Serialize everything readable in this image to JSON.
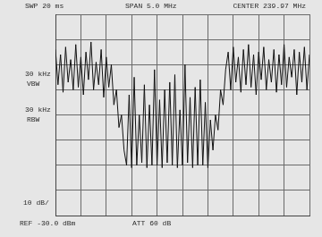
{
  "chart_data": {
    "type": "line",
    "annotations": [
      "SWP 20 ms",
      "SPAN 5.0 MHz",
      "CENTER 239.97 MHz",
      "30 kHz",
      "VBW",
      "30 kHz",
      "RBW",
      "10 dB/",
      "REF -30.0 dBm",
      "ATT 60 dB"
    ],
    "x": [
      237.47,
      237.52,
      237.57,
      237.62,
      237.67,
      237.72,
      237.77,
      237.82,
      237.87,
      237.92,
      237.97,
      238.02,
      238.07,
      238.12,
      238.17,
      238.22,
      238.27,
      238.32,
      238.37,
      238.42,
      238.47,
      238.52,
      238.57,
      238.62,
      238.67,
      238.72,
      238.77,
      238.82,
      238.87,
      238.92,
      238.97,
      239.02,
      239.07,
      239.12,
      239.17,
      239.22,
      239.27,
      239.32,
      239.37,
      239.42,
      239.47,
      239.52,
      239.57,
      239.62,
      239.67,
      239.72,
      239.77,
      239.82,
      239.87,
      239.92,
      239.97,
      240.02,
      240.07,
      240.12,
      240.17,
      240.22,
      240.27,
      240.32,
      240.37,
      240.42,
      240.47,
      240.52,
      240.57,
      240.62,
      240.67,
      240.72,
      240.77,
      240.82,
      240.87,
      240.92,
      240.97,
      241.02,
      241.07,
      241.12,
      241.17,
      241.22,
      241.27,
      241.32,
      241.37,
      241.42,
      241.47,
      241.52,
      241.57,
      241.62,
      241.67,
      241.72,
      241.77,
      241.82,
      241.87,
      241.92,
      241.97,
      242.02,
      242.07,
      242.12,
      242.17,
      242.22,
      242.27,
      242.32,
      242.37,
      242.42,
      242.47
    ],
    "values": [
      -44,
      -58,
      -46,
      -61,
      -43,
      -57,
      -48,
      -60,
      -42,
      -59,
      -47,
      -62,
      -45,
      -56,
      -41,
      -60,
      -49,
      -58,
      -44,
      -63,
      -47,
      -59,
      -50,
      -66,
      -60,
      -75,
      -70,
      -84,
      -90,
      -62,
      -91,
      -55,
      -90,
      -70,
      -89,
      -58,
      -91,
      -66,
      -90,
      -52,
      -90,
      -64,
      -91,
      -60,
      -89,
      -57,
      -90,
      -54,
      -91,
      -68,
      -90,
      -50,
      -89,
      -63,
      -91,
      -59,
      -90,
      -56,
      -90,
      -65,
      -91,
      -72,
      -84,
      -70,
      -76,
      -60,
      -66,
      -52,
      -45,
      -60,
      -43,
      -57,
      -47,
      -61,
      -44,
      -58,
      -42,
      -59,
      -46,
      -62,
      -45,
      -56,
      -43,
      -60,
      -48,
      -57,
      -44,
      -61,
      -46,
      -58,
      -42,
      -59,
      -47,
      -55,
      -44,
      -62,
      -45,
      -57,
      -43,
      -60,
      -46
    ],
    "color": "#111111",
    "xlim": [
      237.47,
      242.47
    ],
    "xticks": [
      237.47,
      237.97,
      238.47,
      238.97,
      239.47,
      239.97,
      240.47,
      240.97,
      241.47,
      241.97,
      242.47
    ],
    "ylim": [
      -110,
      -30
    ],
    "yticks": [
      -110,
      -100,
      -90,
      -80,
      -70,
      -60,
      -50,
      -40,
      -30
    ],
    "grid": true,
    "tick_labels": false
  }
}
